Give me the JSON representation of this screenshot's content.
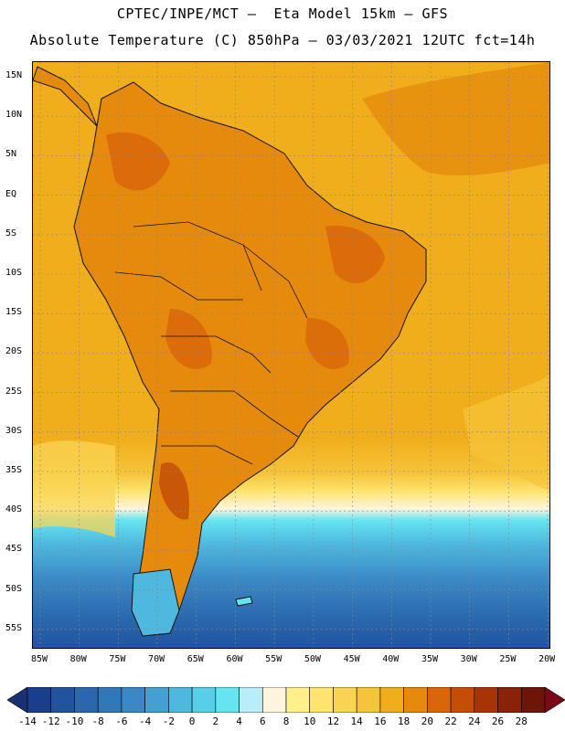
{
  "header": {
    "title_line1": "CPTEC/INPE/MCT –  Eta Model 15km – GFS",
    "title_line2": "Absolute Temperature (C) 850hPa – 03/03/2021 12UTC fct=14h"
  },
  "map": {
    "lat_labels": [
      "15N",
      "10N",
      "5N",
      "EQ",
      "5S",
      "10S",
      "15S",
      "20S",
      "25S",
      "30S",
      "35S",
      "40S",
      "45S",
      "50S",
      "55S"
    ],
    "lon_labels": [
      "85W",
      "80W",
      "75W",
      "70W",
      "65W",
      "60W",
      "55W",
      "50W",
      "45W",
      "40W",
      "35W",
      "30W",
      "25W",
      "20W"
    ],
    "gridlines": true
  },
  "colorbar": {
    "labels": [
      "-14",
      "-12",
      "-10",
      "-8",
      "-6",
      "-4",
      "-2",
      "0",
      "2",
      "4",
      "6",
      "8",
      "10",
      "12",
      "14",
      "16",
      "18",
      "20",
      "22",
      "24",
      "26",
      "28"
    ],
    "colors": [
      "#1a3e8c",
      "#22539e",
      "#2a67ad",
      "#3277b8",
      "#3b89c4",
      "#45a0d2",
      "#4fb8de",
      "#58cfe8",
      "#66e4f0",
      "#b8eef8",
      "#fff5dc",
      "#fff08c",
      "#fce46e",
      "#f9d453",
      "#f5c43a",
      "#f0ae1c",
      "#e58a0c",
      "#d96609",
      "#c44d08",
      "#a73407",
      "#8a2208",
      "#6e1509"
    ],
    "left_arrow_color": "#1a3070",
    "right_arrow_color": "#7a0a18"
  }
}
